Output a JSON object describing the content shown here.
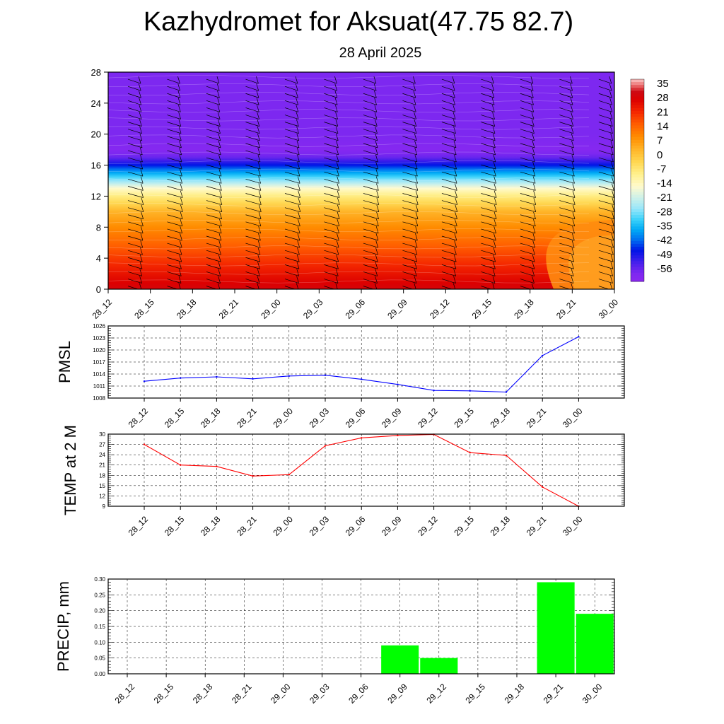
{
  "header": {
    "title": "Kazhydromet for Aksuat(47.75 82.7)",
    "subtitle": "28 April 2025"
  },
  "chart_data": [
    {
      "type": "heatmap",
      "name": "upper-air temperature and wind cross-section",
      "xlabel": "",
      "ylabel": "",
      "x_ticks": [
        "28_12",
        "28_15",
        "28_18",
        "28_21",
        "29_00",
        "29_03",
        "29_06",
        "29_09",
        "29_12",
        "29_15",
        "29_18",
        "29_21",
        "30_00"
      ],
      "y_ticks": [
        0,
        4,
        8,
        12,
        16,
        20,
        24,
        28
      ],
      "ylim": [
        0,
        28
      ],
      "colorbar": {
        "labels": [
          "35",
          "28",
          "21",
          "14",
          "7",
          "0",
          "-7",
          "-14",
          "-21",
          "-28",
          "-35",
          "-42",
          "-49",
          "-56"
        ],
        "range": [
          -60,
          38
        ]
      },
      "temperature_profile_by_height": [
        {
          "h": 0,
          "t": 30
        },
        {
          "h": 2,
          "t": 25
        },
        {
          "h": 4,
          "t": 20
        },
        {
          "h": 6,
          "t": 15
        },
        {
          "h": 8,
          "t": 10
        },
        {
          "h": 10,
          "t": 4
        },
        {
          "h": 12,
          "t": -7
        },
        {
          "h": 13,
          "t": -14
        },
        {
          "h": 14,
          "t": -25
        },
        {
          "h": 15,
          "t": -35
        },
        {
          "h": 16,
          "t": -45
        },
        {
          "h": 17,
          "t": -54
        },
        {
          "h": 18,
          "t": -58
        },
        {
          "h": 19,
          "t": -57
        },
        {
          "h": 20,
          "t": -56
        },
        {
          "h": 28,
          "t": -56
        }
      ],
      "wind_barbs": "shown",
      "grid": false
    },
    {
      "type": "line",
      "name": "PMSL",
      "ylabel": "PMSL",
      "x": [
        "28_12",
        "28_15",
        "28_18",
        "28_21",
        "29_00",
        "29_03",
        "29_06",
        "29_09",
        "29_12",
        "29_15",
        "29_18",
        "29_21",
        "30_00"
      ],
      "values": [
        1012.2,
        1013.0,
        1013.3,
        1012.8,
        1013.5,
        1013.7,
        1012.7,
        1011.4,
        1009.9,
        1009.8,
        1009.5,
        1018.6,
        1023.3
      ],
      "y_ticks": [
        1008,
        1011,
        1014,
        1017,
        1020,
        1023,
        1026
      ],
      "ylim": [
        1008,
        1026
      ],
      "color": "#0000ff",
      "grid": true
    },
    {
      "type": "line",
      "name": "TEMP at 2 M",
      "ylabel": "TEMP at 2 M",
      "x": [
        "28_12",
        "28_15",
        "28_18",
        "28_21",
        "29_00",
        "29_03",
        "29_06",
        "29_09",
        "29_12",
        "29_15",
        "29_18",
        "29_21",
        "30_00"
      ],
      "values": [
        27.0,
        21.0,
        20.6,
        17.8,
        18.2,
        26.6,
        28.9,
        29.6,
        29.9,
        24.6,
        23.8,
        14.6,
        9.0
      ],
      "y_ticks": [
        9,
        12,
        15,
        18,
        21,
        24,
        27,
        30
      ],
      "ylim": [
        9,
        30
      ],
      "color": "#ff0000",
      "grid": true
    },
    {
      "type": "bar",
      "name": "PRECIP, mm",
      "ylabel": "PRECIP, mm",
      "categories": [
        "28_12",
        "28_15",
        "28_18",
        "28_21",
        "29_00",
        "29_03",
        "29_06",
        "29_09",
        "29_12",
        "29_15",
        "29_18",
        "29_21",
        "30_00"
      ],
      "values": [
        0,
        0,
        0,
        0,
        0,
        0,
        0,
        0.09,
        0.05,
        0,
        0,
        0.29,
        0.19
      ],
      "y_ticks": [
        "0.00",
        "0.05",
        "0.10",
        "0.15",
        "0.20",
        "0.25",
        "0.30"
      ],
      "ylim": [
        0,
        0.3
      ],
      "color": "#00ff00",
      "grid": true
    }
  ]
}
